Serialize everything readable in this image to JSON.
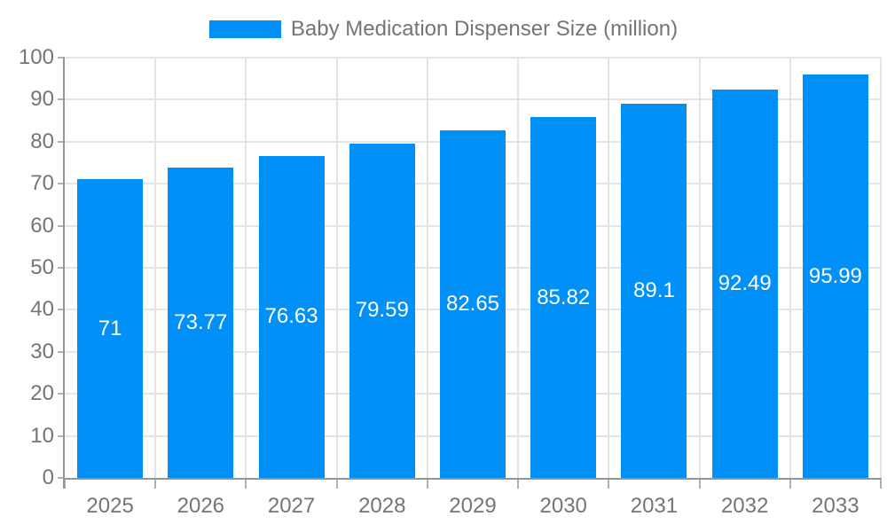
{
  "chart_data": {
    "type": "bar",
    "title": "",
    "categories": [
      "2025",
      "2026",
      "2027",
      "2028",
      "2029",
      "2030",
      "2031",
      "2032",
      "2033"
    ],
    "series": [
      {
        "name": "Baby Medication Dispenser Size (million)",
        "values": [
          71,
          73.77,
          76.63,
          79.59,
          82.65,
          85.82,
          89.1,
          92.49,
          95.99
        ]
      }
    ],
    "value_labels": [
      "71",
      "73.77",
      "76.63",
      "79.59",
      "82.65",
      "85.82",
      "89.1",
      "92.49",
      "95.99"
    ],
    "xlabel": "",
    "ylabel": "",
    "ylim": [
      0,
      100
    ],
    "yticks": [
      0,
      10,
      20,
      30,
      40,
      50,
      60,
      70,
      80,
      90,
      100
    ],
    "grid": true,
    "legend_position": "top"
  },
  "colors": {
    "bar": "#0190f7",
    "axis_text": "#757575",
    "grid_line": "#e3e3e8",
    "axis_line": "#949494",
    "tick_line": "#b0b0b0",
    "value_label_text": "#ffffff",
    "background": "#ffffff"
  }
}
